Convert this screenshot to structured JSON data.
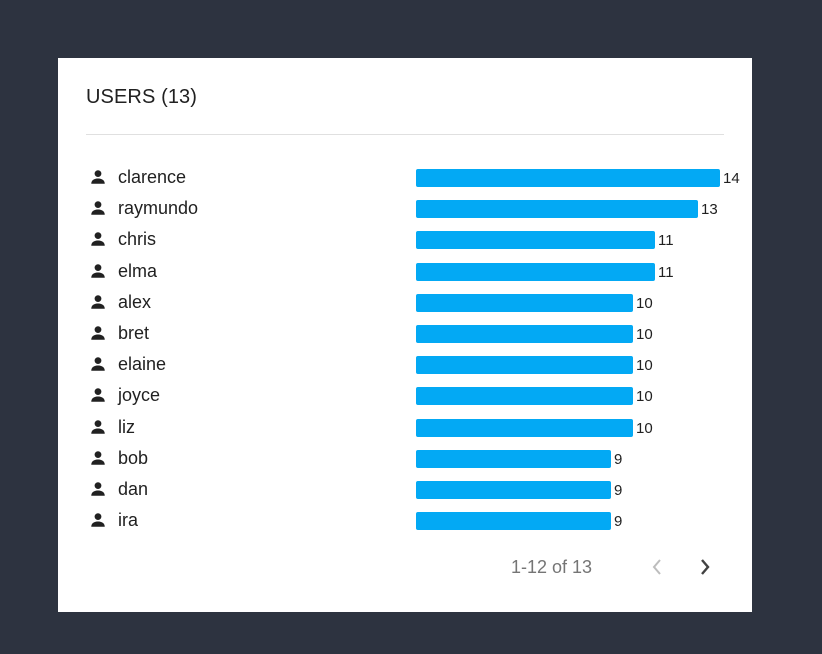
{
  "card": {
    "title": "USERS (13)"
  },
  "chart_data": {
    "type": "bar",
    "orientation": "horizontal",
    "categories": [
      "clarence",
      "raymundo",
      "chris",
      "elma",
      "alex",
      "bret",
      "elaine",
      "joyce",
      "liz",
      "bob",
      "dan",
      "ira"
    ],
    "values": [
      14,
      13,
      11,
      11,
      10,
      10,
      10,
      10,
      10,
      9,
      9,
      9
    ],
    "xlim": [
      0,
      14
    ],
    "grid": false,
    "bar_color": "#03a9f4"
  },
  "pagination": {
    "range_text": "1-12 of 13",
    "prev_enabled": false,
    "next_enabled": true
  },
  "icons": {
    "row_icon": "person-icon",
    "prev": "chevron-left-icon",
    "next": "chevron-right-icon"
  },
  "colors": {
    "background": "#2d3340",
    "card": "#ffffff",
    "bar": "#03a9f4",
    "text": "#212121",
    "muted": "#757575",
    "disabled": "#bdbdbd"
  }
}
